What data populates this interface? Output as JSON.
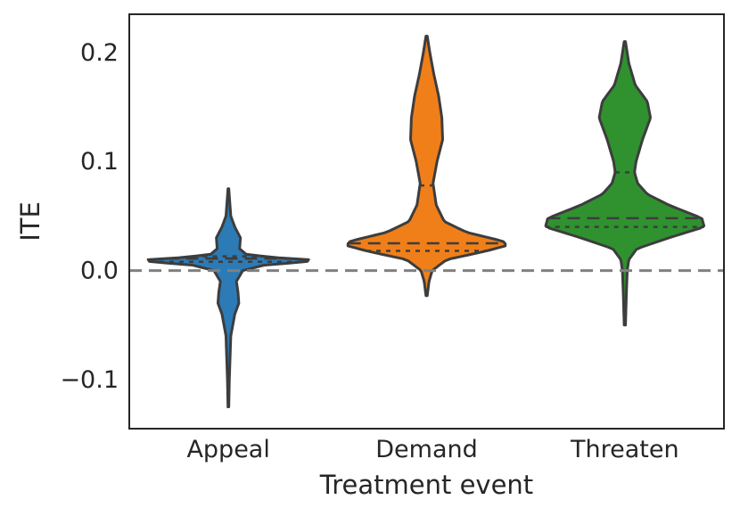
{
  "chart_data": {
    "type": "violin",
    "title": "",
    "xlabel": "Treatment event",
    "ylabel": "ITE",
    "ylim": [
      -0.145,
      0.235
    ],
    "yticks": [
      {
        "value": 0.2,
        "label": "0.2"
      },
      {
        "value": 0.1,
        "label": "0.1"
      },
      {
        "value": 0.0,
        "label": "0.0"
      },
      {
        "value": -0.1,
        "label": "−0.1"
      }
    ],
    "reference_line": {
      "value": 0.0,
      "style": "dashed",
      "color": "#808080"
    },
    "grid": false,
    "categories": [
      "Appeal",
      "Demand",
      "Threaten"
    ],
    "violins": [
      {
        "category": "Appeal",
        "color": "#2c7bb6",
        "min": -0.125,
        "max": 0.075,
        "median": 0.011,
        "q1": 0.008,
        "q3": 0.013,
        "profile": [
          [
            -0.125,
            0.005
          ],
          [
            -0.1,
            0.012
          ],
          [
            -0.06,
            0.03
          ],
          [
            -0.04,
            0.08
          ],
          [
            -0.03,
            0.13
          ],
          [
            -0.02,
            0.12
          ],
          [
            -0.01,
            0.1
          ],
          [
            0.0,
            0.18
          ],
          [
            0.005,
            0.45
          ],
          [
            0.008,
            0.98
          ],
          [
            0.01,
            1.0
          ],
          [
            0.012,
            0.55
          ],
          [
            0.015,
            0.22
          ],
          [
            0.02,
            0.14
          ],
          [
            0.03,
            0.15
          ],
          [
            0.04,
            0.08
          ],
          [
            0.05,
            0.03
          ],
          [
            0.06,
            0.02
          ],
          [
            0.075,
            0.005
          ]
        ]
      },
      {
        "category": "Demand",
        "color": "#f07f1a",
        "min": -0.023,
        "max": 0.215,
        "median": 0.025,
        "q1": 0.018,
        "q3": 0.078,
        "profile": [
          [
            -0.023,
            0.008
          ],
          [
            -0.01,
            0.03
          ],
          [
            0.0,
            0.07
          ],
          [
            0.01,
            0.25
          ],
          [
            0.018,
            0.75
          ],
          [
            0.023,
            1.0
          ],
          [
            0.027,
            0.95
          ],
          [
            0.035,
            0.5
          ],
          [
            0.045,
            0.22
          ],
          [
            0.06,
            0.12
          ],
          [
            0.08,
            0.08
          ],
          [
            0.1,
            0.13
          ],
          [
            0.12,
            0.2
          ],
          [
            0.14,
            0.19
          ],
          [
            0.16,
            0.15
          ],
          [
            0.18,
            0.09
          ],
          [
            0.2,
            0.04
          ],
          [
            0.215,
            0.008
          ]
        ]
      },
      {
        "category": "Threaten",
        "color": "#2f922f",
        "min": -0.05,
        "max": 0.21,
        "median": 0.048,
        "q1": 0.04,
        "q3": 0.09,
        "profile": [
          [
            -0.05,
            0.008
          ],
          [
            -0.02,
            0.02
          ],
          [
            0.0,
            0.03
          ],
          [
            0.01,
            0.05
          ],
          [
            0.02,
            0.15
          ],
          [
            0.03,
            0.55
          ],
          [
            0.04,
            0.99
          ],
          [
            0.048,
            0.96
          ],
          [
            0.06,
            0.55
          ],
          [
            0.07,
            0.28
          ],
          [
            0.08,
            0.16
          ],
          [
            0.09,
            0.12
          ],
          [
            0.1,
            0.14
          ],
          [
            0.12,
            0.22
          ],
          [
            0.14,
            0.32
          ],
          [
            0.155,
            0.28
          ],
          [
            0.17,
            0.13
          ],
          [
            0.19,
            0.05
          ],
          [
            0.21,
            0.008
          ]
        ]
      }
    ]
  }
}
